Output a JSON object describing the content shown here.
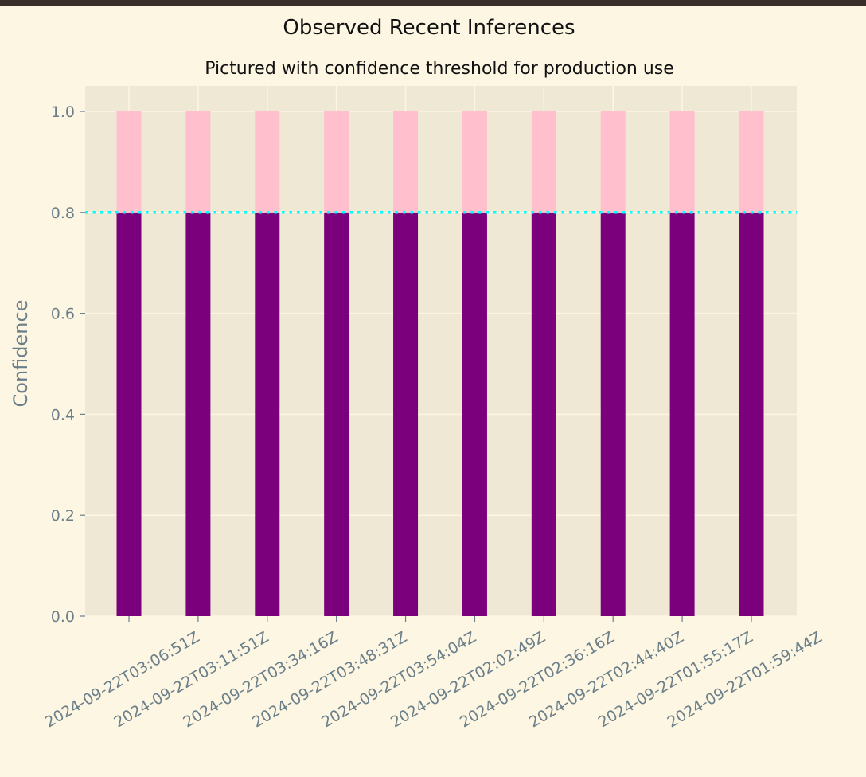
{
  "chart_data": {
    "type": "bar",
    "stacked": true,
    "title": "Observed Recent Inferences",
    "subtitle": "Pictured with confidence threshold for production use",
    "xlabel": "",
    "ylabel": "Confidence",
    "ylim": [
      0,
      1.0
    ],
    "yticks": [
      "0.0",
      "0.2",
      "0.4",
      "0.6",
      "0.8",
      "1.0"
    ],
    "categories": [
      "2024-09-22T03:06:51Z",
      "2024-09-22T03:11:51Z",
      "2024-09-22T03:34:16Z",
      "2024-09-22T03:48:31Z",
      "2024-09-22T03:54:04Z",
      "2024-09-22T02:02:49Z",
      "2024-09-22T02:36:16Z",
      "2024-09-22T02:44:40Z",
      "2024-09-22T01:55:17Z",
      "2024-09-22T01:59:44Z"
    ],
    "series": [
      {
        "values": [
          0.8,
          0.8,
          0.8,
          0.8,
          0.8,
          0.8,
          0.8,
          0.8,
          0.8,
          0.8
        ],
        "color": "#7b007b"
      },
      {
        "values": [
          0.2,
          0.2,
          0.2,
          0.2,
          0.2,
          0.2,
          0.2,
          0.2,
          0.2,
          0.2
        ],
        "color": "#ffbfcc"
      }
    ],
    "threshold": {
      "value": 0.8,
      "color": "#00ffff",
      "style": "dotted"
    },
    "grid": true,
    "colors": {
      "plot_background": "#eee8d5",
      "figure_background": "#fdf6e3",
      "grid": "#fdf6e3"
    }
  }
}
